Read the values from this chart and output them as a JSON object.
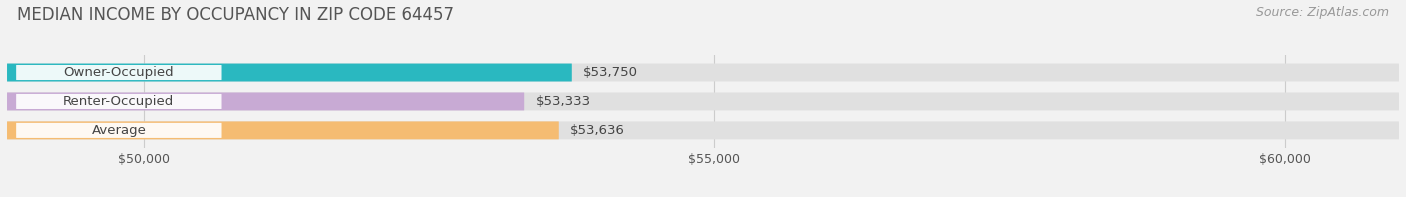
{
  "title": "MEDIAN INCOME BY OCCUPANCY IN ZIP CODE 64457",
  "source": "Source: ZipAtlas.com",
  "categories": [
    "Owner-Occupied",
    "Renter-Occupied",
    "Average"
  ],
  "values": [
    53750,
    53333,
    53636
  ],
  "bar_colors": [
    "#2ab8c0",
    "#c8aad4",
    "#f5bc72"
  ],
  "x_min": 48800,
  "x_max": 61000,
  "x_ticks": [
    50000,
    55000,
    60000
  ],
  "x_tick_labels": [
    "$50,000",
    "$55,000",
    "$60,000"
  ],
  "value_labels": [
    "$53,750",
    "$53,333",
    "$53,636"
  ],
  "background_color": "#f2f2f2",
  "bar_bg_color": "#e0e0e0",
  "label_bg_color": "#ffffff",
  "title_fontsize": 12,
  "source_fontsize": 9,
  "label_fontsize": 9.5,
  "value_fontsize": 9.5,
  "tick_fontsize": 9
}
